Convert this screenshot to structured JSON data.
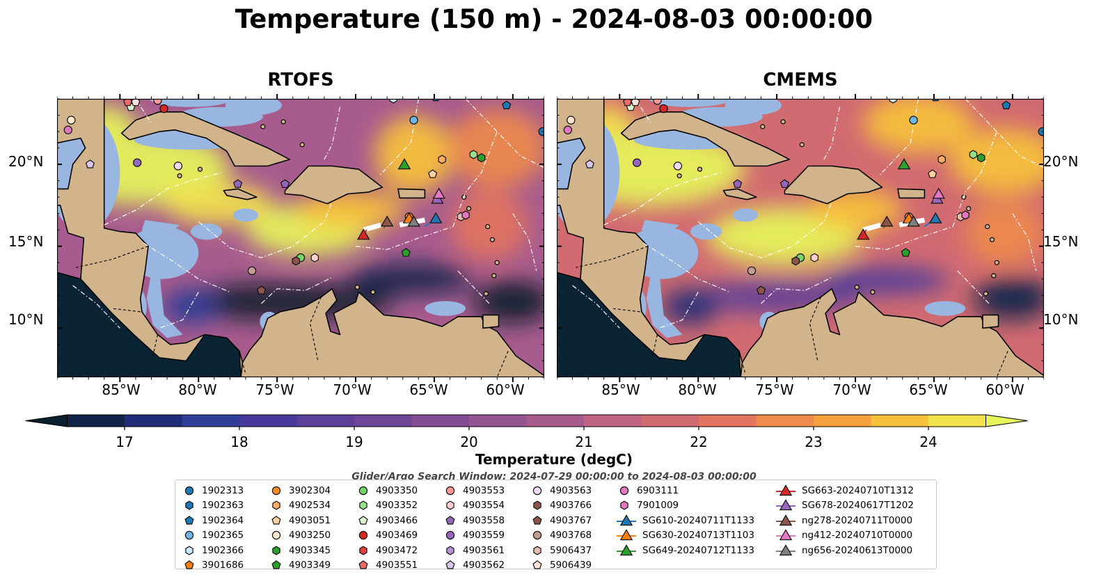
{
  "title": "Temperature (150 m) - 2024-08-03 00:00:00",
  "panels": [
    {
      "title": "RTOFS",
      "field": "rtofs"
    },
    {
      "title": "CMEMS",
      "field": "cmems"
    }
  ],
  "latitude_ticks": [
    "10°N",
    "15°N",
    "20°N"
  ],
  "longitude_ticks": [
    "85°W",
    "80°W",
    "75°W",
    "70°W",
    "65°W",
    "60°W"
  ],
  "map_extent": {
    "lon": [
      -89,
      -58
    ],
    "lat": [
      7,
      24
    ]
  },
  "colorbar": {
    "label": "Temperature (degC)",
    "ticks": [
      "17",
      "18",
      "19",
      "20",
      "21",
      "22",
      "23",
      "24"
    ],
    "range": [
      16.5,
      24.5
    ],
    "step": 0.5,
    "extend": "both",
    "colormap": [
      "#0a1f2e",
      "#10244a",
      "#1f2e78",
      "#2f3e98",
      "#46399b",
      "#5c3f99",
      "#6f4597",
      "#824c95",
      "#955593",
      "#a85c8e",
      "#bf6482",
      "#d16b72",
      "#e27460",
      "#ee8a4c",
      "#f5a13d",
      "#f7c23b",
      "#f2e34d",
      "#e6f65a"
    ]
  },
  "search_window": "Glider/Argo Search Window: 2024-07-29 00:00:00 to 2024-08-03 00:00:00",
  "legend": [
    [
      {
        "label": "1902313",
        "marker": "circle",
        "color": "#1f77b4"
      },
      {
        "label": "1902363",
        "marker": "hexagon",
        "color": "#1f77b4"
      },
      {
        "label": "1902364",
        "marker": "pentagon",
        "color": "#1f77b4"
      },
      {
        "label": "1902365",
        "marker": "circle",
        "color": "#6fb6e7"
      },
      {
        "label": "1902366",
        "marker": "hexagon",
        "color": "#cfe8f7"
      },
      {
        "label": "3901686",
        "marker": "pentagon",
        "color": "#ff7f0e"
      }
    ],
    [
      {
        "label": "3902304",
        "marker": "circle",
        "color": "#ff8c28"
      },
      {
        "label": "4902534",
        "marker": "hexagon",
        "color": "#ffab63"
      },
      {
        "label": "4903051",
        "marker": "pentagon",
        "color": "#ffd09e"
      },
      {
        "label": "4903250",
        "marker": "circle",
        "color": "#ffe6cc"
      },
      {
        "label": "4903345",
        "marker": "hexagon",
        "color": "#2ca02c"
      },
      {
        "label": "4903349",
        "marker": "pentagon",
        "color": "#2ca02c"
      }
    ],
    [
      {
        "label": "4903350",
        "marker": "circle",
        "color": "#76d36a"
      },
      {
        "label": "4903352",
        "marker": "hexagon",
        "color": "#98df8a"
      },
      {
        "label": "4903466",
        "marker": "pentagon",
        "color": "#d9f5cf"
      },
      {
        "label": "4903469",
        "marker": "circle",
        "color": "#d62728"
      },
      {
        "label": "4903472",
        "marker": "hexagon",
        "color": "#e04040"
      },
      {
        "label": "4903551",
        "marker": "pentagon",
        "color": "#ec6a6a"
      }
    ],
    [
      {
        "label": "4903553",
        "marker": "circle",
        "color": "#ff9896"
      },
      {
        "label": "4903554",
        "marker": "hexagon",
        "color": "#ffd0cf"
      },
      {
        "label": "4903558",
        "marker": "pentagon",
        "color": "#9467bd"
      },
      {
        "label": "4903559",
        "marker": "circle",
        "color": "#9467bd"
      },
      {
        "label": "4903561",
        "marker": "hexagon",
        "color": "#b493d6"
      },
      {
        "label": "4903562",
        "marker": "pentagon",
        "color": "#d8c5ee"
      }
    ],
    [
      {
        "label": "4903563",
        "marker": "circle",
        "color": "#eedcf7"
      },
      {
        "label": "4903766",
        "marker": "hexagon",
        "color": "#8c564b"
      },
      {
        "label": "4903767",
        "marker": "pentagon",
        "color": "#8c564b"
      },
      {
        "label": "4903768",
        "marker": "circle",
        "color": "#c49c94"
      },
      {
        "label": "5906437",
        "marker": "hexagon",
        "color": "#e8b9ad"
      },
      {
        "label": "5906439",
        "marker": "pentagon",
        "color": "#fbe3da"
      }
    ],
    [
      {
        "label": "6903111",
        "marker": "circle",
        "color": "#e377c2"
      },
      {
        "label": "7901009",
        "marker": "hexagon",
        "color": "#e377c2"
      },
      {
        "label": "SG610-20240711T1133",
        "marker": "triangle-line",
        "color": "#1f77b4"
      },
      {
        "label": "SG630-20240713T1103",
        "marker": "triangle-line",
        "color": "#ff7f0e"
      },
      {
        "label": "SG649-20240712T1133",
        "marker": "triangle-line",
        "color": "#2ca02c"
      }
    ],
    [
      {
        "label": "SG663-20240710T1312",
        "marker": "triangle-line",
        "color": "#d62728"
      },
      {
        "label": "SG678-20240617T1202",
        "marker": "triangle-line",
        "color": "#9467bd"
      },
      {
        "label": "ng278-20240711T0000",
        "marker": "triangle-line",
        "color": "#8c564b"
      },
      {
        "label": "ng412-20240710T0000",
        "marker": "triangle-line",
        "color": "#e377c2"
      },
      {
        "label": "ng656-20240613T0000",
        "marker": "triangle-line",
        "color": "#7f7f7f"
      }
    ]
  ],
  "observations": [
    {
      "id": "1902313",
      "lon": -58.1,
      "lat": 22.0
    },
    {
      "id": "1902364",
      "lon": -64.9,
      "lat": 24.1
    },
    {
      "id": "1902364",
      "lon": -60.4,
      "lat": 23.6
    },
    {
      "id": "1902365",
      "lon": -66.3,
      "lat": 22.7
    },
    {
      "id": "1902366",
      "lon": -67.6,
      "lat": 24.0
    },
    {
      "id": "3901686",
      "lon": -57.8,
      "lat": 21.7
    },
    {
      "id": "3902304",
      "lon": -66.6,
      "lat": 16.8
    },
    {
      "id": "4902534",
      "lon": -64.5,
      "lat": 20.3
    },
    {
      "id": "4903051",
      "lon": -65.1,
      "lat": 19.4
    },
    {
      "id": "4903250",
      "lon": -88.1,
      "lat": 22.7
    },
    {
      "id": "4903345",
      "lon": -62.0,
      "lat": 20.4
    },
    {
      "id": "4903349",
      "lon": -66.8,
      "lat": 14.6
    },
    {
      "id": "4903350",
      "lon": -73.5,
      "lat": 14.3
    },
    {
      "id": "4903352",
      "lon": -62.5,
      "lat": 20.6
    },
    {
      "id": "4903466",
      "lon": -84.3,
      "lat": 23.5
    },
    {
      "id": "4903469",
      "lon": -82.2,
      "lat": 23.4
    },
    {
      "id": "4903551",
      "lon": -84.5,
      "lat": 23.8
    },
    {
      "id": "4903553",
      "lon": -82.6,
      "lat": 23.9
    },
    {
      "id": "4903554",
      "lon": -72.6,
      "lat": 14.3
    },
    {
      "id": "4903558",
      "lon": -77.5,
      "lat": 18.8
    },
    {
      "id": "4903558",
      "lon": -74.5,
      "lat": 18.8
    },
    {
      "id": "4903559",
      "lon": -83.9,
      "lat": 20.1
    },
    {
      "id": "4903562",
      "lon": -86.9,
      "lat": 20.0
    },
    {
      "id": "4903563",
      "lon": -81.3,
      "lat": 19.9
    },
    {
      "id": "4903766",
      "lon": -73.8,
      "lat": 14.1
    },
    {
      "id": "4903767",
      "lon": -76.0,
      "lat": 12.3
    },
    {
      "id": "4903768",
      "lon": -76.6,
      "lat": 13.5
    },
    {
      "id": "5906437",
      "lon": -63.3,
      "lat": 16.8
    },
    {
      "id": "5906439",
      "lon": -84.0,
      "lat": 23.8
    },
    {
      "id": "6903111",
      "lon": -88.3,
      "lat": 22.1
    },
    {
      "id": "7901009",
      "lon": -63.0,
      "lat": 16.9
    }
  ],
  "glider_tracks": [
    {
      "id": "SG610-20240711T1133",
      "points": [
        [
          -65.6,
          16.2
        ],
        [
          -64.9,
          16.7
        ]
      ]
    },
    {
      "id": "SG630-20240713T1103",
      "points": [
        [
          -66.8,
          16.6
        ],
        [
          -66.6,
          16.7
        ]
      ]
    },
    {
      "id": "SG649-20240712T1133",
      "points": [
        [
          -67.3,
          19.7
        ],
        [
          -66.9,
          20.0
        ]
      ]
    },
    {
      "id": "SG663-20240710T1312",
      "points": [
        [
          -69.3,
          16.0
        ],
        [
          -69.5,
          15.7
        ]
      ]
    },
    {
      "id": "SG678-20240617T1202",
      "points": [
        [
          -64.8,
          17.8
        ],
        [
          -64.8,
          17.9
        ]
      ]
    },
    {
      "id": "ng278-20240711T0000",
      "points": [
        [
          -68.2,
          16.1
        ],
        [
          -68.0,
          16.5
        ]
      ]
    },
    {
      "id": "ng412-20240710T0000",
      "points": [
        [
          -65.0,
          17.8
        ],
        [
          -64.7,
          18.2
        ]
      ]
    },
    {
      "id": "ng656-20240613T0000",
      "points": [
        [
          -66.8,
          16.4
        ],
        [
          -66.3,
          16.5
        ]
      ]
    }
  ]
}
